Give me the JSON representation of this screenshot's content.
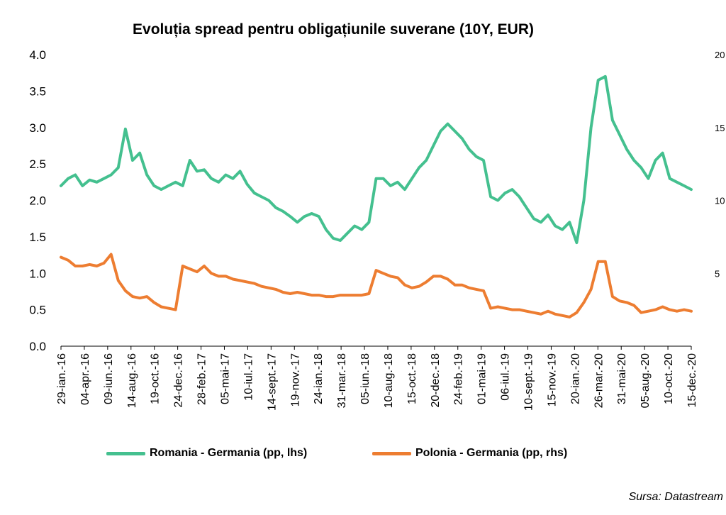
{
  "chart_data": {
    "type": "line",
    "title": "Evoluția spread pentru obligațiunile suverane (10Y, EUR)",
    "source": "Sursa: Datastream",
    "x_labels": [
      "29-ian.-16",
      "04-apr.-16",
      "09-iun.-16",
      "14-aug.-16",
      "19-oct.-16",
      "24-dec.-16",
      "28-feb.-17",
      "05-mai-17",
      "10-iul.-17",
      "14-sept.-17",
      "19-nov.-17",
      "24-ian.-18",
      "31-mar.-18",
      "05-iun.-18",
      "10-aug.-18",
      "15-oct.-18",
      "20-dec.-18",
      "24-feb.-19",
      "01-mai-19",
      "06-iul.-19",
      "10-sept.-19",
      "15-nov.-19",
      "20-ian.-20",
      "26-mar.-20",
      "31-mai-20",
      "05-aug.-20",
      "10-oct.-20",
      "15-dec.-20"
    ],
    "y_left": {
      "ticks": [
        "4.0",
        "3.5",
        "3.0",
        "2.5",
        "2.0",
        "1.5",
        "1.0",
        "0.5",
        "0.0"
      ],
      "ylim": [
        0,
        4
      ]
    },
    "y_right": {
      "ticks": [
        "20",
        "15",
        "10",
        "5"
      ],
      "ylim": [
        0,
        20
      ]
    },
    "series": [
      {
        "name": "Romania - Germania (pp, lhs)",
        "axis": "left",
        "color": "#44C08F",
        "values": [
          2.2,
          2.3,
          2.35,
          2.2,
          2.28,
          2.25,
          2.3,
          2.35,
          2.45,
          2.98,
          2.55,
          2.65,
          2.35,
          2.2,
          2.15,
          2.2,
          2.25,
          2.2,
          2.55,
          2.4,
          2.42,
          2.3,
          2.25,
          2.35,
          2.3,
          2.4,
          2.22,
          2.1,
          2.05,
          2.0,
          1.9,
          1.85,
          1.78,
          1.7,
          1.78,
          1.82,
          1.78,
          1.6,
          1.48,
          1.45,
          1.55,
          1.65,
          1.6,
          1.7,
          2.3,
          2.3,
          2.2,
          2.25,
          2.15,
          2.3,
          2.45,
          2.55,
          2.75,
          2.95,
          3.05,
          2.95,
          2.85,
          2.7,
          2.6,
          2.55,
          2.05,
          2.0,
          2.1,
          2.15,
          2.05,
          1.9,
          1.75,
          1.7,
          1.8,
          1.65,
          1.6,
          1.7,
          1.42,
          2.0,
          3.0,
          3.65,
          3.7,
          3.1,
          2.9,
          2.7,
          2.55,
          2.45,
          2.3,
          2.55,
          2.65,
          2.3,
          2.25,
          2.2,
          2.15
        ]
      },
      {
        "name": "Polonia - Germania (pp, rhs)",
        "axis": "right",
        "color": "#ED7D31",
        "values": [
          6.1,
          5.9,
          5.5,
          5.5,
          5.6,
          5.5,
          5.7,
          6.3,
          4.5,
          3.8,
          3.4,
          3.3,
          3.4,
          3.0,
          2.7,
          2.6,
          2.5,
          5.5,
          5.3,
          5.1,
          5.5,
          5.0,
          4.8,
          4.8,
          4.6,
          4.5,
          4.4,
          4.3,
          4.1,
          4.0,
          3.9,
          3.7,
          3.6,
          3.7,
          3.6,
          3.5,
          3.5,
          3.4,
          3.4,
          3.5,
          3.5,
          3.5,
          3.5,
          3.6,
          5.2,
          5.0,
          4.8,
          4.7,
          4.2,
          4.0,
          4.1,
          4.4,
          4.8,
          4.8,
          4.6,
          4.2,
          4.2,
          4.0,
          3.9,
          3.8,
          2.6,
          2.7,
          2.6,
          2.5,
          2.5,
          2.4,
          2.3,
          2.2,
          2.4,
          2.2,
          2.1,
          2.0,
          2.3,
          3.0,
          3.9,
          5.8,
          5.8,
          3.4,
          3.1,
          3.0,
          2.8,
          2.3,
          2.4,
          2.5,
          2.7,
          2.5,
          2.4,
          2.5,
          2.4
        ]
      }
    ],
    "legend": "bottom",
    "grid": false
  }
}
